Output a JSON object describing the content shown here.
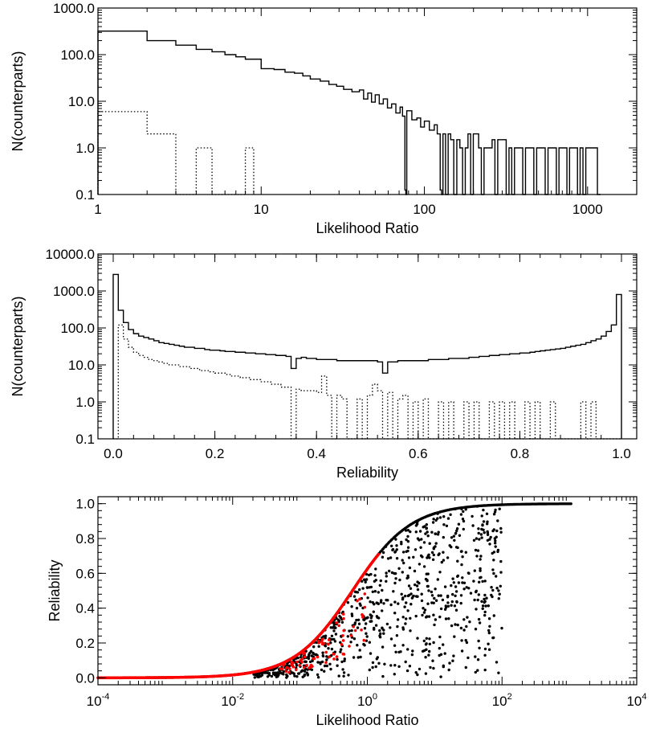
{
  "chart_data": [
    {
      "type": "histogram",
      "xlabel": "Likelihood Ratio",
      "ylabel": "N(counterparts)",
      "xscale": "log",
      "yscale": "log",
      "xlim": [
        1,
        2000
      ],
      "ylim": [
        0.1,
        1000
      ],
      "xticks": [
        1,
        10,
        100,
        1000
      ],
      "xtick_labels": [
        "1",
        "10",
        "100",
        "1000"
      ],
      "yticks": [
        0.1,
        1,
        10,
        100,
        1000
      ],
      "ytick_labels": [
        "0.1",
        "1.0",
        "10.0",
        "100.0",
        "1000.0"
      ],
      "series": [
        {
          "style": "solid",
          "steps": [
            [
              1,
              2,
              320
            ],
            [
              2,
              3,
              200
            ],
            [
              3,
              4,
              160
            ],
            [
              4,
              5,
              130
            ],
            [
              5,
              6,
              115
            ],
            [
              6,
              7,
              100
            ],
            [
              7,
              8,
              90
            ],
            [
              8,
              10,
              80
            ],
            [
              10,
              12,
              50
            ],
            [
              12,
              14,
              48
            ],
            [
              14,
              16,
              42
            ],
            [
              16,
              18,
              40
            ],
            [
              18,
              20,
              35
            ],
            [
              20,
              23,
              30
            ],
            [
              23,
              26,
              27
            ],
            [
              26,
              29,
              23
            ],
            [
              29,
              32,
              21
            ],
            [
              32,
              36,
              18
            ],
            [
              36,
              40,
              16
            ],
            [
              40,
              45,
              14
            ],
            [
              45,
              50,
              12
            ],
            [
              50,
              56,
              11
            ],
            [
              56,
              63,
              9
            ],
            [
              63,
              71,
              7
            ],
            [
              71,
              76,
              6
            ],
            [
              76,
              78,
              0.1
            ],
            [
              78,
              90,
              5
            ],
            [
              90,
              100,
              3.5
            ],
            [
              100,
              115,
              3
            ],
            [
              115,
              125,
              2.5
            ],
            [
              125,
              130,
              0.1
            ],
            [
              130,
              145,
              2
            ],
            [
              145,
              165,
              1.5
            ],
            [
              165,
              185,
              1
            ],
            [
              185,
              215,
              2
            ],
            [
              215,
              260,
              1
            ],
            [
              260,
              330,
              1.5
            ],
            [
              330,
              450,
              1
            ],
            [
              450,
              620,
              1
            ],
            [
              620,
              900,
              1
            ],
            [
              900,
              1100,
              1
            ],
            [
              1100,
              1200,
              1
            ]
          ]
        },
        {
          "style": "dotted",
          "steps": [
            [
              1,
              2,
              6
            ],
            [
              2,
              3,
              2
            ],
            [
              3,
              4,
              0.1
            ],
            [
              4,
              5,
              1
            ],
            [
              5,
              8,
              0.1
            ],
            [
              8,
              9,
              1
            ]
          ]
        }
      ]
    },
    {
      "type": "histogram",
      "xlabel": "Reliability",
      "ylabel": "N(counterparts)",
      "xscale": "linear",
      "yscale": "log",
      "xlim": [
        -0.03,
        1.03
      ],
      "ylim": [
        0.1,
        10000
      ],
      "xticks": [
        0.0,
        0.2,
        0.4,
        0.6,
        0.8,
        1.0
      ],
      "xtick_labels": [
        "0.0",
        "0.2",
        "0.4",
        "0.6",
        "0.8",
        "1.0"
      ],
      "yticks": [
        0.1,
        1,
        10,
        100,
        1000,
        10000
      ],
      "ytick_labels": [
        "0.1",
        "1.0",
        "10.0",
        "100.0",
        "1000.0",
        "10000.0"
      ],
      "bin_width": 0.01,
      "series": [
        {
          "style": "solid",
          "values": [
            2800,
            300,
            140,
            90,
            70,
            60,
            55,
            50,
            45,
            40,
            38,
            36,
            34,
            32,
            30,
            30,
            28,
            28,
            26,
            25,
            25,
            24,
            23,
            23,
            22,
            22,
            21,
            21,
            20,
            20,
            19,
            19,
            18,
            18,
            17,
            8,
            15,
            16,
            15,
            15,
            14,
            14,
            14,
            14,
            13,
            13,
            13,
            13,
            13,
            13,
            13,
            13,
            12,
            6,
            12,
            12,
            13,
            13,
            13,
            13,
            13,
            13,
            14,
            14,
            14,
            14,
            15,
            15,
            15,
            15,
            16,
            16,
            17,
            17,
            18,
            18,
            19,
            19,
            20,
            20,
            21,
            21,
            22,
            23,
            24,
            25,
            26,
            27,
            28,
            30,
            32,
            34,
            36,
            40,
            45,
            50,
            60,
            80,
            120,
            800
          ]
        },
        {
          "style": "dotted",
          "values": [
            0.1,
            120,
            50,
            30,
            22,
            18,
            16,
            14,
            13,
            12,
            11,
            10,
            10,
            9,
            9,
            8,
            8,
            7,
            7,
            6.5,
            6,
            6,
            5.5,
            5,
            5,
            4.5,
            4.5,
            4,
            4,
            3.5,
            3.5,
            3,
            3,
            2.5,
            2.5,
            0.1,
            2.2,
            2,
            2,
            2,
            1.8,
            5,
            1.5,
            0.1,
            1.5,
            1.2,
            0.1,
            0.1,
            1.2,
            0.1,
            1.5,
            3,
            2,
            0.1,
            1.8,
            0.1,
            1.2,
            1.5,
            0.1,
            1,
            0.1,
            1.2,
            0.1,
            0.1,
            1,
            0.1,
            1,
            0.1,
            0.1,
            1,
            0.1,
            1,
            0.1,
            0.1,
            1,
            0.1,
            1,
            0.1,
            1,
            0.1,
            0.1,
            1,
            0.1,
            1,
            0.1,
            0.1,
            1,
            0.1,
            0.1,
            0.1,
            0.1,
            0.1,
            1,
            0.1,
            1,
            0.1,
            0.1,
            0.1,
            0.1,
            0.1
          ]
        }
      ]
    },
    {
      "type": "scatter",
      "xlabel": "Likelihood Ratio",
      "ylabel": "Reliability",
      "xscale": "log",
      "yscale": "linear",
      "xlim": [
        0.0001,
        10000
      ],
      "ylim": [
        -0.04,
        1.04
      ],
      "xticks": [
        0.0001,
        0.01,
        1,
        100,
        10000
      ],
      "xtick_labels": [
        {
          "base": "10",
          "exp": "-4"
        },
        {
          "base": "10",
          "exp": "-2"
        },
        {
          "base": "10",
          "exp": "0"
        },
        {
          "base": "10",
          "exp": "2"
        },
        {
          "base": "10",
          "exp": "4"
        }
      ],
      "yticks": [
        0.0,
        0.2,
        0.4,
        0.6,
        0.8,
        1.0
      ],
      "ytick_labels": [
        "0.0",
        "0.2",
        "0.4",
        "0.6",
        "0.8",
        "1.0"
      ],
      "series": [
        {
          "name": "",
          "color": "#000000",
          "envelope": "R = L/(L + 0.6)",
          "xrange": [
            0.0001,
            1100
          ],
          "scatter_region": "below envelope for L from 0.02 to 100"
        },
        {
          "name": "",
          "color": "#ff0000",
          "envelope": "R = L/(L + 0.6)",
          "xrange": [
            0.0001,
            1.5
          ]
        }
      ],
      "colors": {
        "black_points": "#000000",
        "red_points": "#ff0000"
      }
    }
  ]
}
